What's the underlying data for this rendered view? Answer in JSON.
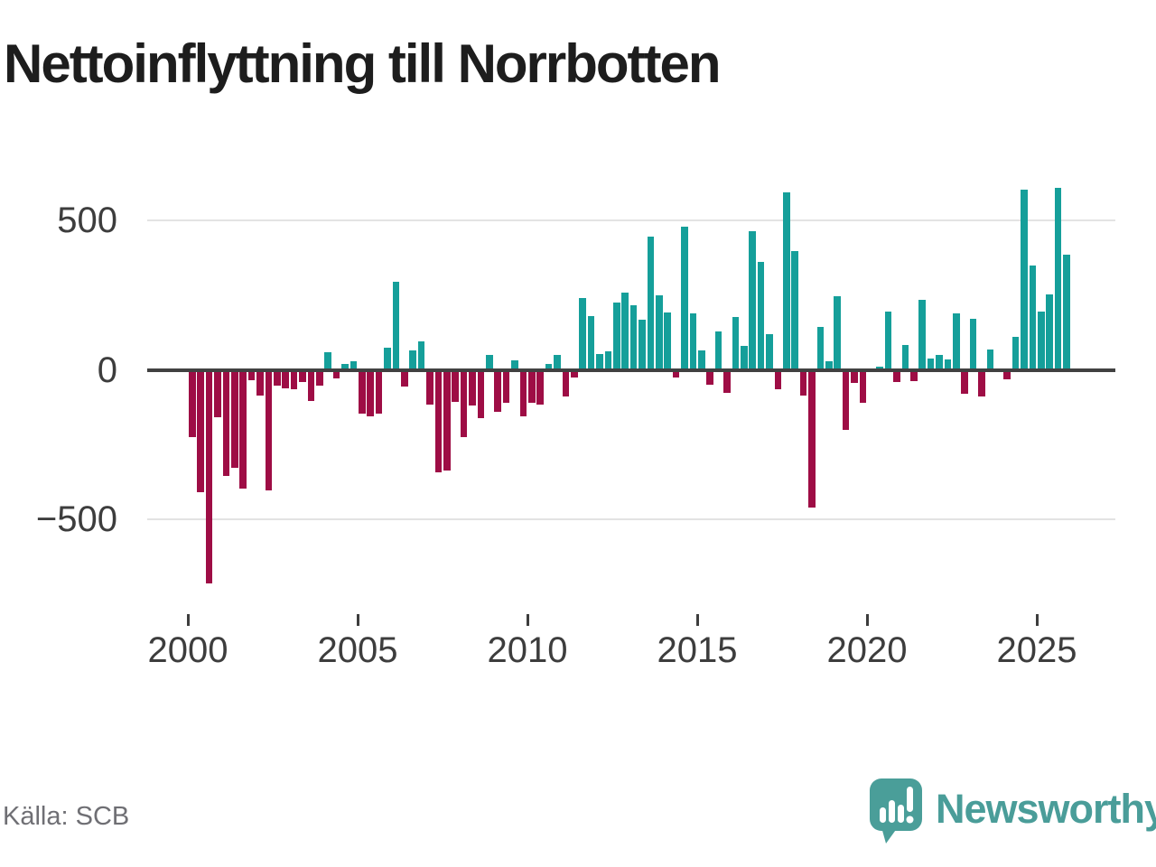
{
  "title": "Nettoinflyttning till Norrbotten",
  "source": {
    "label": "Källa: SCB"
  },
  "branding": {
    "name": "Newsworthy",
    "icon": "speech-bubble-bar-chart-icon"
  },
  "colors": {
    "positive_bar": "#159f9a",
    "negative_bar": "#9e0d45",
    "zero_axis": "#414141",
    "gridline": "#e3e3e3",
    "axis_text": "#3d3d3d",
    "source_text": "#6f6f74",
    "brand_teal": "#4a9d99"
  },
  "chart_data": {
    "type": "bar",
    "title": "Nettoinflyttning till Norrbotten",
    "frequency": "quarterly",
    "start": "2000-Q1",
    "end": "2025-Q4",
    "values": [
      -223,
      -408,
      -716,
      -157,
      -354,
      -326,
      -397,
      -31,
      -85,
      -404,
      -50,
      -58,
      -62,
      -37,
      -101,
      -50,
      63,
      -27,
      22,
      32,
      -145,
      -152,
      -143,
      79,
      300,
      -54,
      67,
      100,
      -113,
      -342,
      -337,
      -104,
      -224,
      -116,
      -160,
      52,
      -138,
      -108,
      35,
      -155,
      -108,
      -113,
      23,
      52,
      -86,
      -22,
      244,
      185,
      55,
      65,
      231,
      262,
      221,
      172,
      450,
      255,
      197,
      -22,
      485,
      194,
      69,
      -48,
      133,
      -74,
      180,
      83,
      470,
      366,
      123,
      -61,
      600,
      402,
      -83,
      -460,
      148,
      33,
      250,
      -198,
      -42,
      -107,
      0,
      14,
      198,
      -38,
      86,
      -35,
      238,
      40,
      53,
      37,
      192,
      -79,
      176,
      -86,
      72,
      0,
      -29,
      113,
      610,
      355,
      198,
      257,
      615,
      392
    ],
    "y_ticks": [
      500,
      0,
      -500
    ],
    "y_tick_labels": [
      "500",
      "0",
      "−500"
    ],
    "x_tick_labels": [
      "2000",
      "2005",
      "2010",
      "2015",
      "2020",
      "2025"
    ],
    "ylim": [
      -760,
      650
    ],
    "grid": "horizontal-only",
    "legend": "none",
    "positive_color": "#159f9a",
    "negative_color": "#9e0d45"
  }
}
